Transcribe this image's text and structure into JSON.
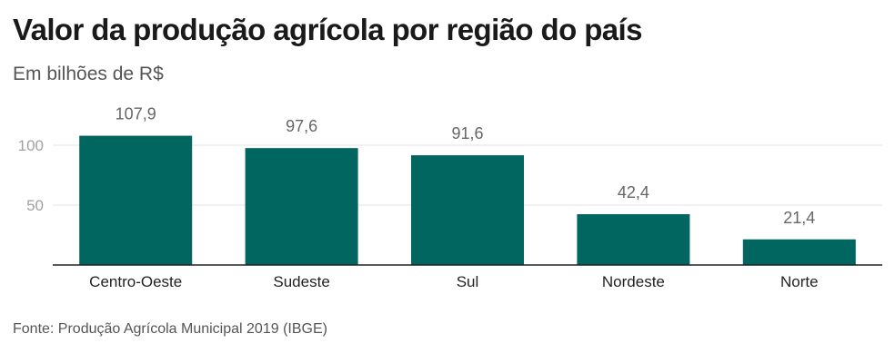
{
  "chart_data": {
    "type": "bar",
    "title": "Valor da produção agrícola por região do país",
    "subtitle": "Em bilhões de R$",
    "categories": [
      "Centro-Oeste",
      "Sudeste",
      "Sul",
      "Nordeste",
      "Norte"
    ],
    "values": [
      107.9,
      97.6,
      91.6,
      42.4,
      21.4
    ],
    "data_labels": [
      "107,9",
      "97,6",
      "91,6",
      "42,4",
      "21,4"
    ],
    "yticks": [
      50,
      100
    ],
    "ytick_labels": [
      "50",
      "100"
    ],
    "ylim": [
      0,
      112
    ],
    "grid": true,
    "bar_color": "#00665f",
    "source": "Fonte: Produção Agrícola Municipal 2019 (IBGE)"
  }
}
